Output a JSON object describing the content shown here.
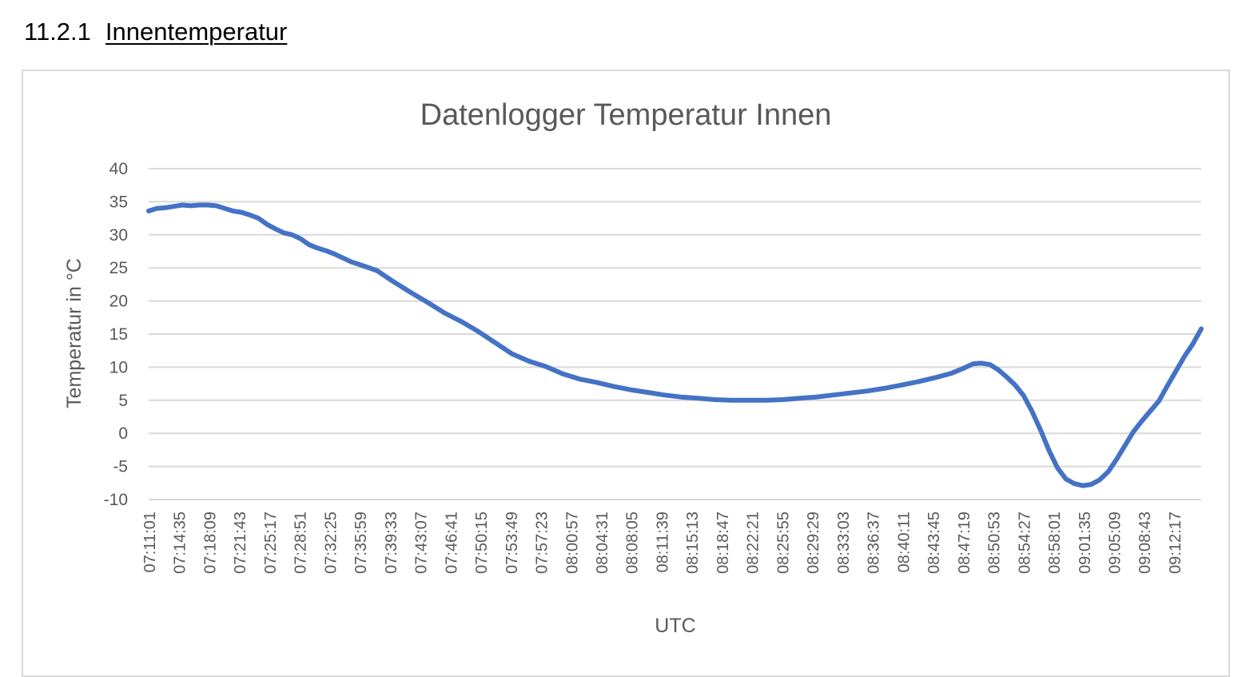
{
  "heading": {
    "number": "11.2.1",
    "text": "Innentemperatur"
  },
  "chart_data": {
    "type": "line",
    "title": "Datenlogger Temperatur Innen",
    "xlabel": "UTC",
    "ylabel": "Temperatur in °C",
    "ylim": [
      -10,
      40
    ],
    "yticks": [
      -10,
      -5,
      0,
      5,
      10,
      15,
      20,
      25,
      30,
      35,
      40
    ],
    "xticks": [
      "07:11:01",
      "07:14:35",
      "07:18:09",
      "07:21:43",
      "07:25:17",
      "07:28:51",
      "07:32:25",
      "07:35:59",
      "07:39:33",
      "07:43:07",
      "07:46:41",
      "07:50:15",
      "07:53:49",
      "07:57:23",
      "08:00:57",
      "08:04:31",
      "08:08:05",
      "08:11:39",
      "08:15:13",
      "08:18:47",
      "08:22:21",
      "08:25:55",
      "08:29:29",
      "08:33:03",
      "08:36:37",
      "08:40:11",
      "08:43:45",
      "08:47:19",
      "08:50:53",
      "08:54:27",
      "08:58:01",
      "09:01:35",
      "09:05:09",
      "09:08:43",
      "09:12:17"
    ],
    "grid": true,
    "legend": "none",
    "series_color": "#4472c4",
    "series": [
      {
        "x": [
          "07:11:01",
          "07:12:00",
          "07:13:00",
          "07:14:00",
          "07:15:00",
          "07:16:00",
          "07:17:00",
          "07:18:00",
          "07:19:00",
          "07:20:00",
          "07:21:00",
          "07:22:00",
          "07:23:00",
          "07:24:00",
          "07:25:00",
          "07:26:00",
          "07:27:00",
          "07:28:00",
          "07:29:00",
          "07:30:00",
          "07:31:00",
          "07:32:00",
          "07:33:00",
          "07:34:00",
          "07:35:00",
          "07:36:00",
          "07:38:00",
          "07:40:00",
          "07:42:00",
          "07:44:00",
          "07:46:00",
          "07:48:00",
          "07:50:00",
          "07:52:00",
          "07:54:00",
          "07:56:00",
          "07:58:00",
          "08:00:00",
          "08:02:00",
          "08:04:00",
          "08:06:00",
          "08:08:00",
          "08:10:00",
          "08:12:00",
          "08:14:00",
          "08:16:00",
          "08:18:00",
          "08:20:00",
          "08:22:00",
          "08:24:00",
          "08:26:00",
          "08:28:00",
          "08:30:00",
          "08:32:00",
          "08:34:00",
          "08:36:00",
          "08:38:00",
          "08:40:00",
          "08:42:00",
          "08:44:00",
          "08:46:00",
          "08:47:30",
          "08:48:30",
          "08:49:30",
          "08:50:30",
          "08:51:30",
          "08:52:30",
          "08:53:30",
          "08:54:30",
          "08:55:30",
          "08:56:30",
          "08:57:30",
          "08:58:30",
          "08:59:30",
          "09:00:30",
          "09:01:30",
          "09:02:30",
          "09:03:30",
          "09:04:30",
          "09:05:30",
          "09:06:30",
          "09:07:30",
          "09:08:30",
          "09:09:30",
          "09:10:30",
          "09:11:30",
          "09:12:30",
          "09:13:30",
          "09:14:30",
          "09:15:30"
        ],
        "values": [
          33.6,
          34.0,
          34.1,
          34.3,
          34.5,
          34.4,
          34.5,
          34.5,
          34.4,
          34.0,
          33.6,
          33.4,
          33.0,
          32.5,
          31.6,
          30.9,
          30.3,
          30.0,
          29.4,
          28.5,
          28.0,
          27.6,
          27.1,
          26.5,
          25.9,
          25.5,
          24.6,
          22.9,
          21.3,
          19.8,
          18.2,
          16.9,
          15.4,
          13.7,
          12.0,
          10.9,
          10.1,
          9.0,
          8.2,
          7.7,
          7.1,
          6.6,
          6.2,
          5.8,
          5.5,
          5.3,
          5.1,
          5.0,
          5.0,
          5.0,
          5.1,
          5.3,
          5.5,
          5.8,
          6.1,
          6.4,
          6.8,
          7.3,
          7.8,
          8.4,
          9.1,
          9.9,
          10.5,
          10.6,
          10.4,
          9.6,
          8.5,
          7.3,
          5.7,
          3.3,
          0.5,
          -2.6,
          -5.2,
          -6.9,
          -7.6,
          -7.9,
          -7.7,
          -7.0,
          -5.8,
          -3.9,
          -1.8,
          0.3,
          1.9,
          3.4,
          4.9,
          7.2,
          9.4,
          11.6,
          13.5,
          15.8
        ]
      }
    ]
  }
}
